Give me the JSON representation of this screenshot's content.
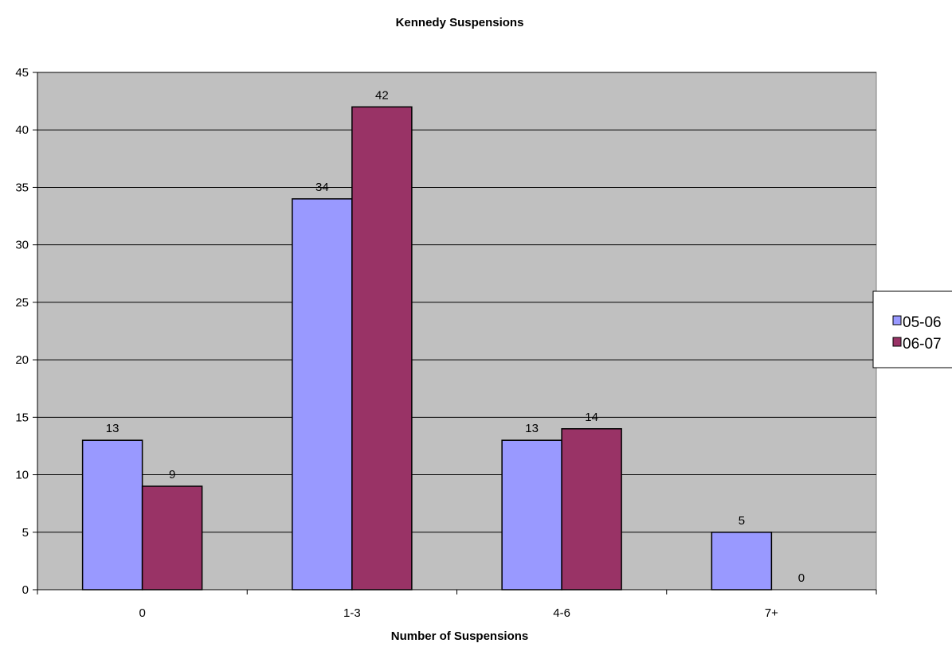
{
  "chart_data": {
    "type": "bar",
    "title": "Kennedy Suspensions",
    "xlabel": "Number of Suspensions",
    "ylabel": "",
    "categories": [
      "0",
      "1-3",
      "4-6",
      "7+"
    ],
    "series": [
      {
        "name": "05-06",
        "values": [
          13,
          34,
          13,
          5
        ],
        "color": "#9999ff"
      },
      {
        "name": "06-07",
        "values": [
          9,
          42,
          14,
          0
        ],
        "color": "#993366"
      }
    ],
    "ylim": [
      0,
      45
    ],
    "yticks": [
      0,
      5,
      10,
      15,
      20,
      25,
      30,
      35,
      40,
      45
    ],
    "grid": true,
    "plot_background": "#c0c0c0",
    "legend_position": "right"
  }
}
